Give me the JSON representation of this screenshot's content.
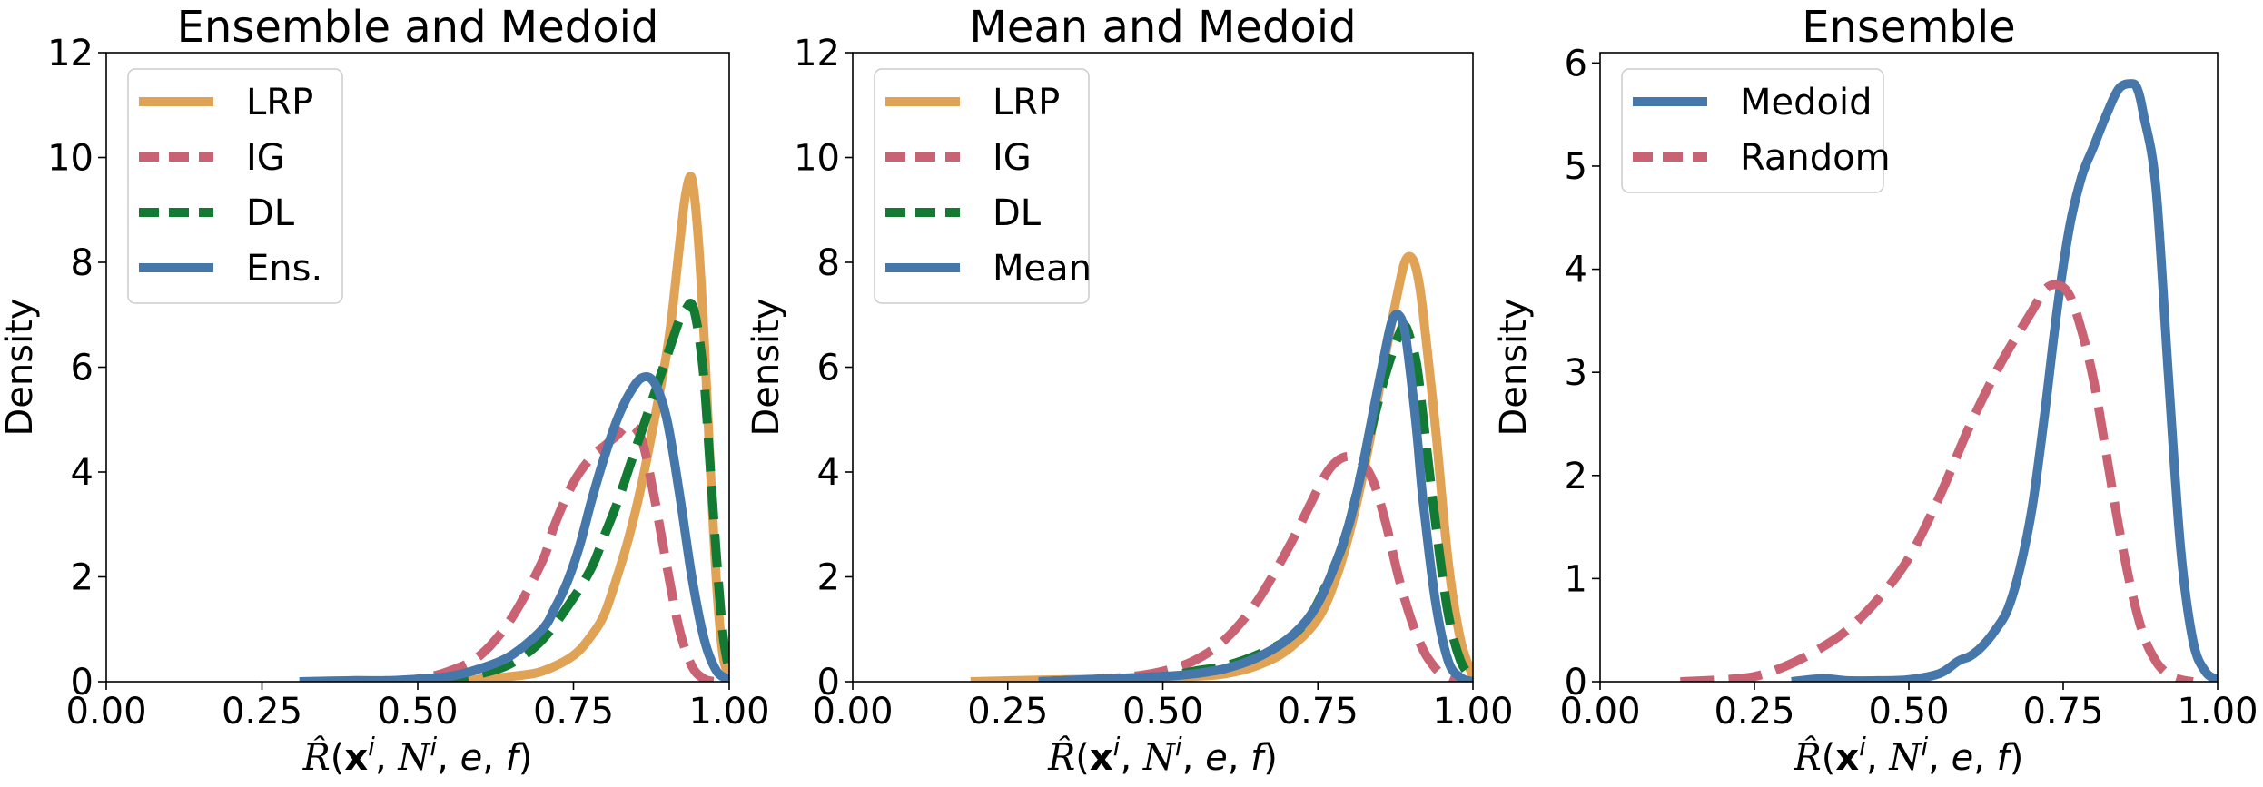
{
  "chart_data": [
    {
      "type": "line",
      "title": "Ensemble and Medoid",
      "xlabel": "R̂(x^i, N^i, e, f)",
      "ylabel": "Density",
      "xlim": [
        0.0,
        1.0
      ],
      "ylim": [
        0,
        12
      ],
      "xticks": [
        "0.00",
        "0.25",
        "0.50",
        "0.75",
        "1.00"
      ],
      "yticks": [
        "0",
        "2",
        "4",
        "6",
        "8",
        "10",
        "12"
      ],
      "legend_position": "top-left",
      "grid": false,
      "series": [
        {
          "name": "LRP",
          "color": "#E0A355",
          "dash": "solid",
          "x": [
            0.5,
            0.55,
            0.6,
            0.65,
            0.7,
            0.75,
            0.78,
            0.8,
            0.82,
            0.84,
            0.86,
            0.88,
            0.9,
            0.91,
            0.92,
            0.93,
            0.94,
            0.95,
            0.96,
            0.97,
            0.98,
            0.99,
            1.0
          ],
          "y": [
            0.0,
            0.02,
            0.05,
            0.1,
            0.2,
            0.5,
            0.9,
            1.3,
            2.0,
            2.8,
            3.8,
            5.0,
            6.3,
            7.2,
            8.3,
            9.3,
            9.6,
            8.5,
            6.5,
            4.0,
            1.8,
            0.5,
            0.1
          ]
        },
        {
          "name": "IG",
          "color": "#C96374",
          "dash": "dashed",
          "x": [
            0.45,
            0.5,
            0.55,
            0.6,
            0.65,
            0.7,
            0.72,
            0.75,
            0.78,
            0.8,
            0.82,
            0.84,
            0.86,
            0.88,
            0.9,
            0.92,
            0.94,
            0.96,
            0.98
          ],
          "y": [
            0.0,
            0.05,
            0.2,
            0.5,
            1.2,
            2.3,
            3.0,
            3.8,
            4.3,
            4.5,
            4.7,
            4.9,
            4.6,
            3.5,
            2.2,
            1.0,
            0.3,
            0.05,
            0.0
          ]
        },
        {
          "name": "DL",
          "color": "#127A33",
          "dash": "dashed",
          "x": [
            0.45,
            0.5,
            0.55,
            0.6,
            0.65,
            0.7,
            0.75,
            0.78,
            0.8,
            0.82,
            0.84,
            0.86,
            0.88,
            0.9,
            0.92,
            0.93,
            0.94,
            0.95,
            0.96,
            0.97,
            0.98,
            0.99,
            1.0
          ],
          "y": [
            0.0,
            0.02,
            0.05,
            0.15,
            0.35,
            0.8,
            1.6,
            2.2,
            2.8,
            3.4,
            4.1,
            4.8,
            5.5,
            6.2,
            6.9,
            7.1,
            7.2,
            6.7,
            5.7,
            4.0,
            2.3,
            0.9,
            0.2
          ]
        },
        {
          "name": "Ens.",
          "color": "#4677AA",
          "dash": "solid",
          "x": [
            0.31,
            0.4,
            0.45,
            0.5,
            0.55,
            0.6,
            0.65,
            0.7,
            0.72,
            0.74,
            0.76,
            0.78,
            0.8,
            0.82,
            0.84,
            0.86,
            0.88,
            0.9,
            0.92,
            0.94,
            0.96,
            0.98,
            1.0
          ],
          "y": [
            0.0,
            0.02,
            0.02,
            0.05,
            0.1,
            0.25,
            0.5,
            1.0,
            1.4,
            1.9,
            2.6,
            3.5,
            4.3,
            5.0,
            5.5,
            5.8,
            5.7,
            5.0,
            3.6,
            2.0,
            0.8,
            0.2,
            0.05
          ]
        }
      ]
    },
    {
      "type": "line",
      "title": "Mean and Medoid",
      "xlabel": "R̂(x^i, N^i, e, f)",
      "ylabel": "Density",
      "xlim": [
        0.0,
        1.0
      ],
      "ylim": [
        0,
        12
      ],
      "xticks": [
        "0.00",
        "0.25",
        "0.50",
        "0.75",
        "1.00"
      ],
      "yticks": [
        "0",
        "2",
        "4",
        "6",
        "8",
        "10",
        "12"
      ],
      "legend_position": "top-left",
      "grid": false,
      "series": [
        {
          "name": "LRP",
          "color": "#E0A355",
          "dash": "solid",
          "x": [
            0.19,
            0.3,
            0.4,
            0.5,
            0.55,
            0.6,
            0.65,
            0.7,
            0.75,
            0.78,
            0.8,
            0.82,
            0.84,
            0.86,
            0.88,
            0.89,
            0.9,
            0.91,
            0.92,
            0.94,
            0.96,
            0.98,
            1.0
          ],
          "y": [
            0.0,
            0.03,
            0.05,
            0.07,
            0.1,
            0.15,
            0.3,
            0.6,
            1.2,
            2.0,
            2.8,
            3.8,
            5.0,
            6.3,
            7.5,
            8.0,
            8.1,
            7.8,
            7.0,
            4.8,
            2.3,
            0.8,
            0.1
          ]
        },
        {
          "name": "IG",
          "color": "#C96374",
          "dash": "dashed",
          "x": [
            0.3,
            0.4,
            0.45,
            0.5,
            0.55,
            0.6,
            0.65,
            0.7,
            0.73,
            0.76,
            0.78,
            0.8,
            0.82,
            0.84,
            0.86,
            0.88,
            0.9,
            0.92,
            0.94,
            0.96,
            0.98
          ],
          "y": [
            0.0,
            0.05,
            0.1,
            0.2,
            0.4,
            0.8,
            1.5,
            2.5,
            3.2,
            3.9,
            4.2,
            4.3,
            4.2,
            3.8,
            3.0,
            2.0,
            1.2,
            0.6,
            0.25,
            0.05,
            0.0
          ]
        },
        {
          "name": "DL",
          "color": "#127A33",
          "dash": "dashed",
          "x": [
            0.3,
            0.4,
            0.5,
            0.55,
            0.6,
            0.65,
            0.7,
            0.74,
            0.78,
            0.8,
            0.82,
            0.84,
            0.86,
            0.88,
            0.89,
            0.9,
            0.91,
            0.92,
            0.94,
            0.96,
            0.98,
            1.0
          ],
          "y": [
            0.0,
            0.05,
            0.1,
            0.2,
            0.3,
            0.5,
            0.8,
            1.3,
            2.3,
            3.0,
            4.0,
            5.0,
            5.9,
            6.6,
            6.8,
            6.5,
            6.0,
            5.0,
            3.0,
            1.3,
            0.4,
            0.05
          ]
        },
        {
          "name": "Mean",
          "color": "#4677AA",
          "dash": "solid",
          "x": [
            0.3,
            0.4,
            0.5,
            0.55,
            0.6,
            0.65,
            0.7,
            0.74,
            0.77,
            0.8,
            0.82,
            0.84,
            0.86,
            0.87,
            0.88,
            0.89,
            0.9,
            0.91,
            0.92,
            0.94,
            0.96,
            0.98,
            1.0
          ],
          "y": [
            0.0,
            0.05,
            0.1,
            0.15,
            0.25,
            0.45,
            0.8,
            1.3,
            2.0,
            3.0,
            4.0,
            5.2,
            6.4,
            6.9,
            7.0,
            6.7,
            5.8,
            4.7,
            3.4,
            1.5,
            0.4,
            0.08,
            0.0
          ]
        }
      ]
    },
    {
      "type": "line",
      "title": "Ensemble",
      "xlabel": "R̂(x^i, N^i, e, f)",
      "ylabel": "Density",
      "xlim": [
        0.0,
        1.0
      ],
      "ylim": [
        0,
        6.1
      ],
      "xticks": [
        "0.00",
        "0.25",
        "0.50",
        "0.75",
        "1.00"
      ],
      "yticks": [
        "0",
        "1",
        "2",
        "3",
        "4",
        "5",
        "6"
      ],
      "legend_position": "top-left",
      "grid": false,
      "series": [
        {
          "name": "Medoid",
          "color": "#4677AA",
          "dash": "solid",
          "x": [
            0.31,
            0.36,
            0.4,
            0.45,
            0.5,
            0.55,
            0.58,
            0.6,
            0.62,
            0.64,
            0.66,
            0.68,
            0.7,
            0.72,
            0.74,
            0.76,
            0.78,
            0.8,
            0.82,
            0.84,
            0.86,
            0.87,
            0.88,
            0.9,
            0.92,
            0.94,
            0.96,
            0.98,
            1.0
          ],
          "y": [
            0.0,
            0.03,
            0.01,
            0.01,
            0.02,
            0.08,
            0.2,
            0.25,
            0.35,
            0.5,
            0.7,
            1.1,
            1.7,
            2.6,
            3.6,
            4.4,
            4.9,
            5.2,
            5.5,
            5.75,
            5.8,
            5.75,
            5.5,
            4.8,
            3.0,
            1.3,
            0.4,
            0.1,
            0.02
          ]
        },
        {
          "name": "Random",
          "color": "#C96374",
          "dash": "dashed",
          "x": [
            0.13,
            0.2,
            0.25,
            0.3,
            0.35,
            0.4,
            0.45,
            0.5,
            0.55,
            0.6,
            0.65,
            0.7,
            0.72,
            0.74,
            0.76,
            0.78,
            0.8,
            0.82,
            0.84,
            0.86,
            0.88,
            0.9,
            0.92,
            0.94,
            0.96
          ],
          "y": [
            0.0,
            0.02,
            0.05,
            0.15,
            0.3,
            0.5,
            0.8,
            1.2,
            1.8,
            2.5,
            3.1,
            3.6,
            3.8,
            3.85,
            3.75,
            3.4,
            2.9,
            2.2,
            1.5,
            0.9,
            0.45,
            0.2,
            0.07,
            0.02,
            0.0
          ]
        }
      ]
    }
  ]
}
